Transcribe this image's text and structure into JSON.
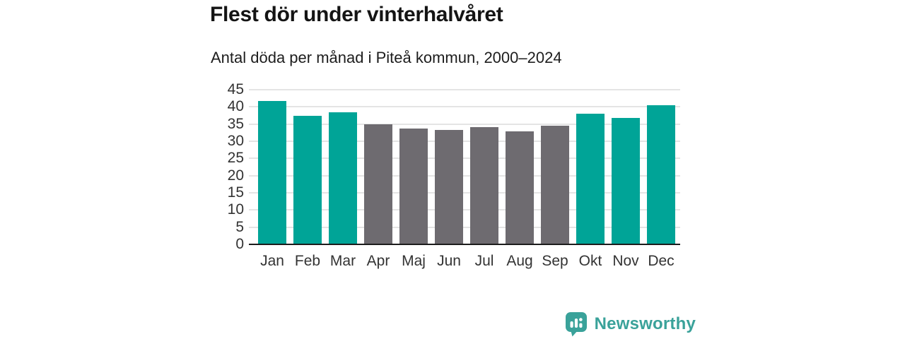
{
  "header": {
    "title": "Flest dör under vinterhalvåret",
    "subtitle": "Antal döda per månad i Piteå kommun, 2000–2024"
  },
  "chart_data": {
    "type": "bar",
    "title": "Flest dör under vinterhalvåret",
    "subtitle": "Antal döda per månad i Piteå kommun, 2000–2024",
    "categories": [
      "Jan",
      "Feb",
      "Mar",
      "Apr",
      "Maj",
      "Jun",
      "Jul",
      "Aug",
      "Sep",
      "Okt",
      "Nov",
      "Dec"
    ],
    "values": [
      41.7,
      37.4,
      38.5,
      34.9,
      33.6,
      33.3,
      34.1,
      32.9,
      34.5,
      38.0,
      36.7,
      40.4
    ],
    "seasons": [
      "winter",
      "winter",
      "winter",
      "summer",
      "summer",
      "summer",
      "summer",
      "summer",
      "summer",
      "winter",
      "winter",
      "winter"
    ],
    "palette": {
      "winter": "#00a497",
      "summer": "#6e6b70"
    },
    "xlabel": "",
    "ylabel": "",
    "ylim": [
      0,
      45
    ],
    "yticks": [
      0,
      5,
      10,
      15,
      20,
      25,
      30,
      35,
      40,
      45
    ],
    "grid": true,
    "legend": "none",
    "colors": {
      "grid": "#e4e4e4",
      "axis": "#1c1c1c",
      "tick_text": "#333333"
    }
  },
  "footer": {
    "brand": "Newsworthy",
    "brand_color": "#3aa29a",
    "logo_icon": "bar-chart-speech-bubble-icon"
  }
}
